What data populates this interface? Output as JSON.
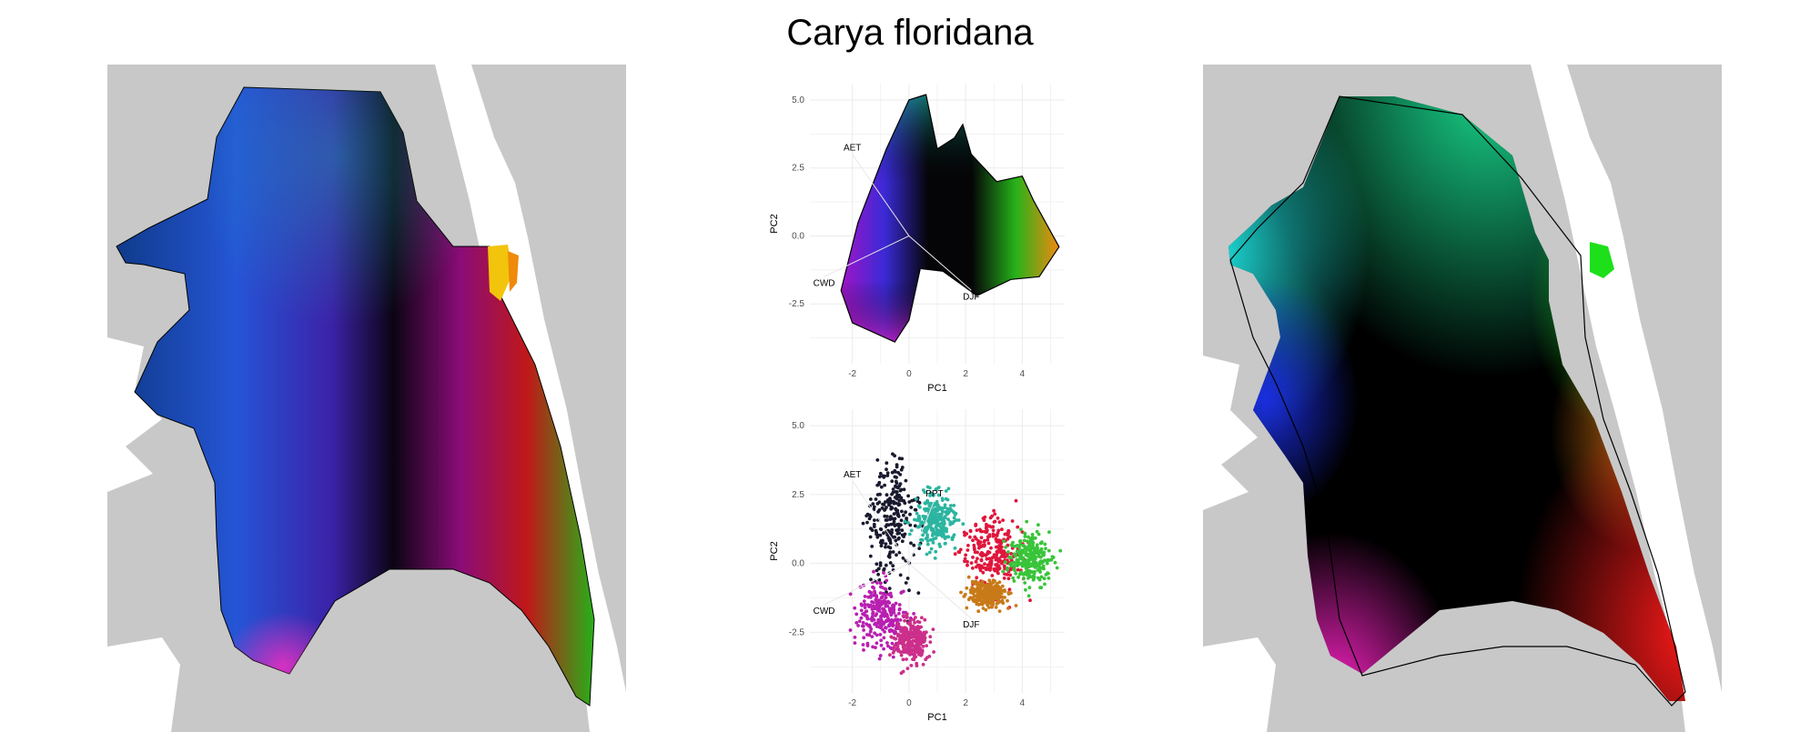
{
  "title": "Carya floridana",
  "colors": {
    "land": "#c8c8c8",
    "grid": "#ebebeb",
    "outline": "#000000"
  },
  "chart_data": [
    {
      "type": "scatter",
      "xlabel": "PC1",
      "ylabel": "PC2",
      "xticks": [
        "-2",
        "0",
        "2",
        "4"
      ],
      "yticks": [
        "5.0",
        "2.5",
        "0.0",
        "-2.5"
      ],
      "xlim": [
        -3.5,
        5.5
      ],
      "ylim": [
        -4.7,
        5.6
      ],
      "grid": true,
      "vectors": [
        {
          "label": "AET",
          "x": -2.0,
          "y": 3.0
        },
        {
          "label": "CWD",
          "x": -3.0,
          "y": -1.5
        },
        {
          "label": "DJF",
          "x": 2.2,
          "y": -2.0
        }
      ],
      "hull": [
        [
          -2.0,
          -3.2
        ],
        [
          -2.4,
          -2.0
        ],
        [
          -1.8,
          0.5
        ],
        [
          -0.8,
          3.2
        ],
        [
          0.0,
          5.0
        ],
        [
          0.6,
          5.2
        ],
        [
          1.0,
          3.2
        ],
        [
          1.6,
          3.6
        ],
        [
          1.9,
          4.1
        ],
        [
          2.2,
          3.0
        ],
        [
          3.1,
          2.0
        ],
        [
          4.0,
          2.2
        ],
        [
          4.4,
          1.3
        ],
        [
          5.3,
          -0.4
        ],
        [
          4.6,
          -1.5
        ],
        [
          3.6,
          -1.6
        ],
        [
          2.4,
          -2.2
        ],
        [
          1.6,
          -1.6
        ],
        [
          1.2,
          -1.3
        ],
        [
          0.4,
          -1.2
        ],
        [
          0.0,
          -3.1
        ],
        [
          -0.5,
          -3.9
        ]
      ]
    },
    {
      "type": "scatter",
      "xlabel": "PC1",
      "ylabel": "PC2",
      "xticks": [
        "-2",
        "0",
        "2",
        "4"
      ],
      "yticks": [
        "5.0",
        "2.5",
        "0.0",
        "-2.5"
      ],
      "xlim": [
        -3.5,
        5.5
      ],
      "ylim": [
        -4.7,
        5.6
      ],
      "grid": true,
      "vectors": [
        {
          "label": "AET",
          "x": -2.0,
          "y": 3.0
        },
        {
          "label": "PPT",
          "x": 0.9,
          "y": 2.3
        },
        {
          "label": "CWD",
          "x": -3.0,
          "y": -1.5
        },
        {
          "label": "DJF",
          "x": 2.2,
          "y": -2.0
        }
      ],
      "clusters": [
        {
          "color": "#1a1a2e",
          "cx": -0.6,
          "cy": 1.5,
          "sx": 0.7,
          "sy": 1.7
        },
        {
          "color": "#2bb5a0",
          "cx": 0.9,
          "cy": 1.6,
          "sx": 0.6,
          "sy": 0.9
        },
        {
          "color": "#e0163c",
          "cx": 3.0,
          "cy": 0.4,
          "sx": 0.9,
          "sy": 1.1
        },
        {
          "color": "#39c43a",
          "cx": 4.3,
          "cy": 0.2,
          "sx": 0.6,
          "sy": 0.8
        },
        {
          "color": "#b81fb0",
          "cx": -1.0,
          "cy": -1.9,
          "sx": 0.7,
          "sy": 1.0
        },
        {
          "color": "#cc2f8a",
          "cx": 0.1,
          "cy": -2.8,
          "sx": 0.5,
          "sy": 0.7
        },
        {
          "color": "#c87a18",
          "cx": 2.8,
          "cy": -1.1,
          "sx": 0.6,
          "sy": 0.4
        }
      ]
    }
  ]
}
